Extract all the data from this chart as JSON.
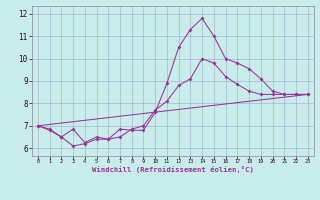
{
  "xlabel": "Windchill (Refroidissement éolien,°C)",
  "background_color": "#c8ecea",
  "grid_color": "#a0a8cc",
  "line_color": "#993399",
  "xlim": [
    -0.5,
    23.5
  ],
  "ylim": [
    5.65,
    12.35
  ],
  "xticks": [
    0,
    1,
    2,
    3,
    4,
    5,
    6,
    7,
    8,
    9,
    10,
    11,
    12,
    13,
    14,
    15,
    16,
    17,
    18,
    19,
    20,
    21,
    22,
    23
  ],
  "yticks": [
    6,
    7,
    8,
    9,
    10,
    11,
    12
  ],
  "line1_x": [
    0,
    1,
    2,
    3,
    4,
    5,
    6,
    7,
    8,
    9,
    10,
    11,
    12,
    13,
    14,
    15,
    16,
    17,
    18,
    19,
    20,
    21,
    22,
    23
  ],
  "line1_y": [
    7.0,
    6.8,
    6.5,
    6.1,
    6.2,
    6.4,
    6.4,
    6.85,
    6.8,
    6.8,
    7.6,
    8.9,
    10.5,
    11.3,
    11.8,
    11.0,
    10.0,
    9.8,
    9.55,
    9.1,
    8.55,
    8.4,
    8.4,
    8.4
  ],
  "line2_x": [
    0,
    1,
    2,
    3,
    4,
    5,
    6,
    7,
    8,
    9,
    10,
    11,
    12,
    13,
    14,
    15,
    16,
    17,
    18,
    19,
    20,
    21,
    22,
    23
  ],
  "line2_y": [
    7.0,
    6.85,
    6.5,
    6.85,
    6.25,
    6.5,
    6.4,
    6.5,
    6.85,
    7.0,
    7.7,
    8.1,
    8.8,
    9.1,
    10.0,
    9.8,
    9.2,
    8.85,
    8.55,
    8.4,
    8.4,
    8.4,
    8.4,
    8.4
  ],
  "line3_x": [
    0,
    23
  ],
  "line3_y": [
    7.0,
    8.4
  ]
}
